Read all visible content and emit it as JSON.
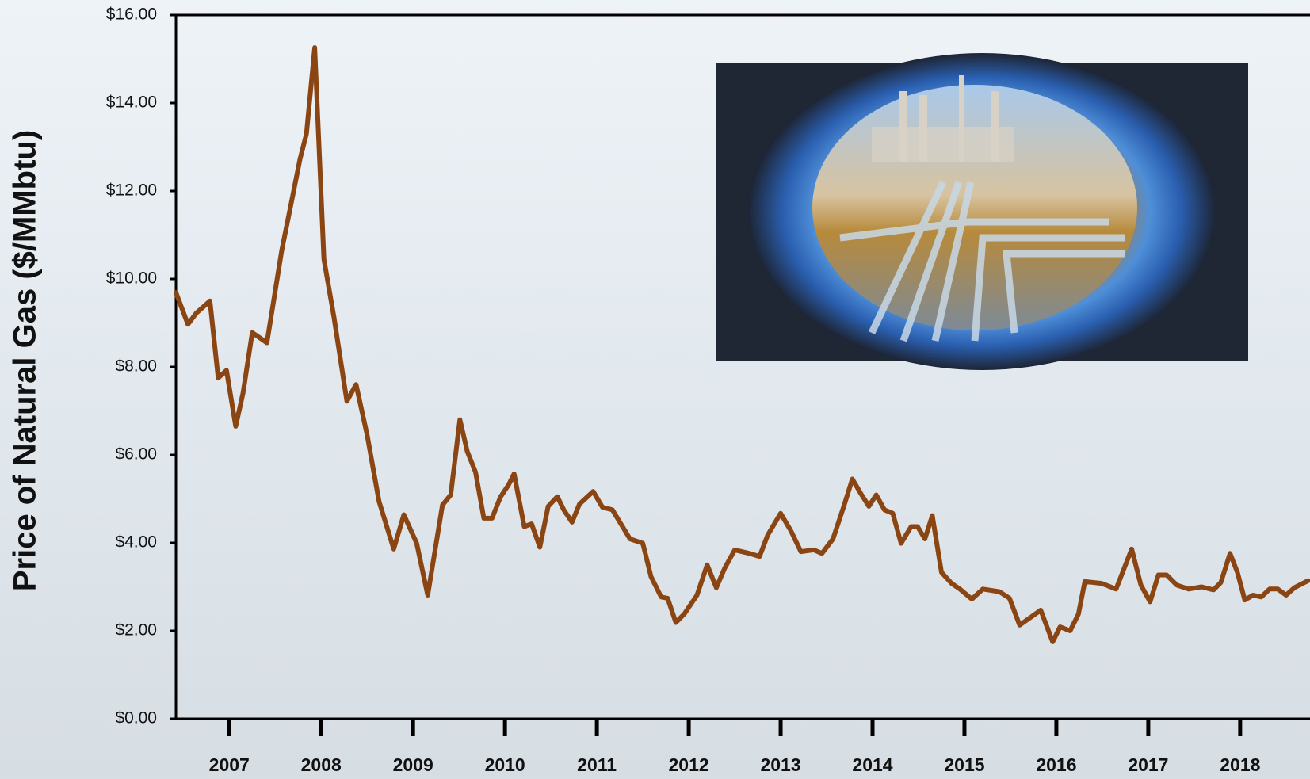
{
  "chart_data": {
    "type": "line",
    "y_label": "Price of Natural Gas ($/MMbtu)",
    "xlim": [
      2006.42,
      2018.76
    ],
    "xticks": [
      2007,
      2008,
      2009,
      2010,
      2011,
      2012,
      2013,
      2014,
      2015,
      2016,
      2017,
      2018
    ],
    "ylim": [
      0,
      16
    ],
    "yticks": [
      {
        "value": 0,
        "label": "$0.00"
      },
      {
        "value": 2,
        "label": "$2.00"
      },
      {
        "value": 4,
        "label": "$4.00"
      },
      {
        "value": 6,
        "label": "$6.00"
      },
      {
        "value": 8,
        "label": "$8.00"
      },
      {
        "value": 10,
        "label": "$10.00"
      },
      {
        "value": 12,
        "label": "$12.00"
      },
      {
        "value": 14,
        "label": "$14.00"
      },
      {
        "value": 16,
        "label": "$16.00"
      }
    ],
    "grid": false,
    "x": [
      2006.42,
      2006.55,
      2006.64,
      2006.79,
      2006.88,
      2006.97,
      2007.07,
      2007.15,
      2007.25,
      2007.41,
      2007.57,
      2007.68,
      2007.77,
      2007.84,
      2007.93,
      2008.03,
      2008.14,
      2008.28,
      2008.38,
      2008.5,
      2008.63,
      2008.79,
      2008.9,
      2009.04,
      2009.16,
      2009.32,
      2009.41,
      2009.51,
      2009.59,
      2009.68,
      2009.77,
      2009.86,
      2009.95,
      2010.04,
      2010.1,
      2010.21,
      2010.29,
      2010.38,
      2010.47,
      2010.57,
      2010.64,
      2010.73,
      2010.81,
      2010.96,
      2011.06,
      2011.17,
      2011.36,
      2011.5,
      2011.59,
      2011.7,
      2011.77,
      2011.86,
      2011.95,
      2012.09,
      2012.2,
      2012.3,
      2012.39,
      2012.5,
      2012.66,
      2012.77,
      2012.86,
      2013.0,
      2013.11,
      2013.22,
      2013.36,
      2013.45,
      2013.57,
      2013.69,
      2013.78,
      2013.87,
      2013.96,
      2014.04,
      2014.13,
      2014.22,
      2014.31,
      2014.42,
      2014.49,
      2014.57,
      2014.65,
      2014.75,
      2014.86,
      2014.95,
      2015.08,
      2015.2,
      2015.38,
      2015.49,
      2015.6,
      2015.73,
      2015.83,
      2015.96,
      2016.04,
      2016.15,
      2016.24,
      2016.31,
      2016.49,
      2016.65,
      2016.82,
      2016.92,
      2017.02,
      2017.11,
      2017.2,
      2017.31,
      2017.44,
      2017.58,
      2017.71,
      2017.79,
      2017.89,
      2017.97,
      2018.05,
      2018.14,
      2018.23,
      2018.32,
      2018.41,
      2018.5,
      2018.59,
      2018.74
    ],
    "series": [
      {
        "color": "#8b4513",
        "values": [
          9.69,
          8.97,
          9.22,
          9.5,
          7.75,
          7.92,
          6.65,
          7.41,
          8.78,
          8.55,
          10.64,
          11.78,
          12.73,
          13.3,
          15.26,
          10.45,
          9.12,
          7.22,
          7.6,
          6.46,
          4.94,
          3.86,
          4.64,
          3.99,
          2.81,
          4.86,
          5.09,
          6.8,
          6.08,
          5.61,
          4.56,
          4.56,
          5.04,
          5.32,
          5.57,
          4.37,
          4.43,
          3.9,
          4.83,
          5.05,
          4.75,
          4.47,
          4.88,
          5.17,
          4.81,
          4.75,
          4.09,
          3.99,
          3.23,
          2.77,
          2.74,
          2.19,
          2.38,
          2.81,
          3.5,
          2.98,
          3.42,
          3.84,
          3.76,
          3.69,
          4.18,
          4.67,
          4.28,
          3.8,
          3.84,
          3.76,
          4.09,
          4.85,
          5.45,
          5.13,
          4.83,
          5.09,
          4.75,
          4.67,
          3.99,
          4.37,
          4.37,
          4.09,
          4.62,
          3.33,
          3.08,
          2.95,
          2.72,
          2.95,
          2.89,
          2.74,
          2.13,
          2.32,
          2.47,
          1.75,
          2.09,
          2.0,
          2.38,
          3.12,
          3.08,
          2.95,
          3.86,
          3.04,
          2.66,
          3.27,
          3.27,
          3.04,
          2.95,
          3.0,
          2.93,
          3.1,
          3.76,
          3.33,
          2.7,
          2.81,
          2.77,
          2.95,
          2.95,
          2.81,
          2.98,
          3.14
        ]
      }
    ]
  }
}
